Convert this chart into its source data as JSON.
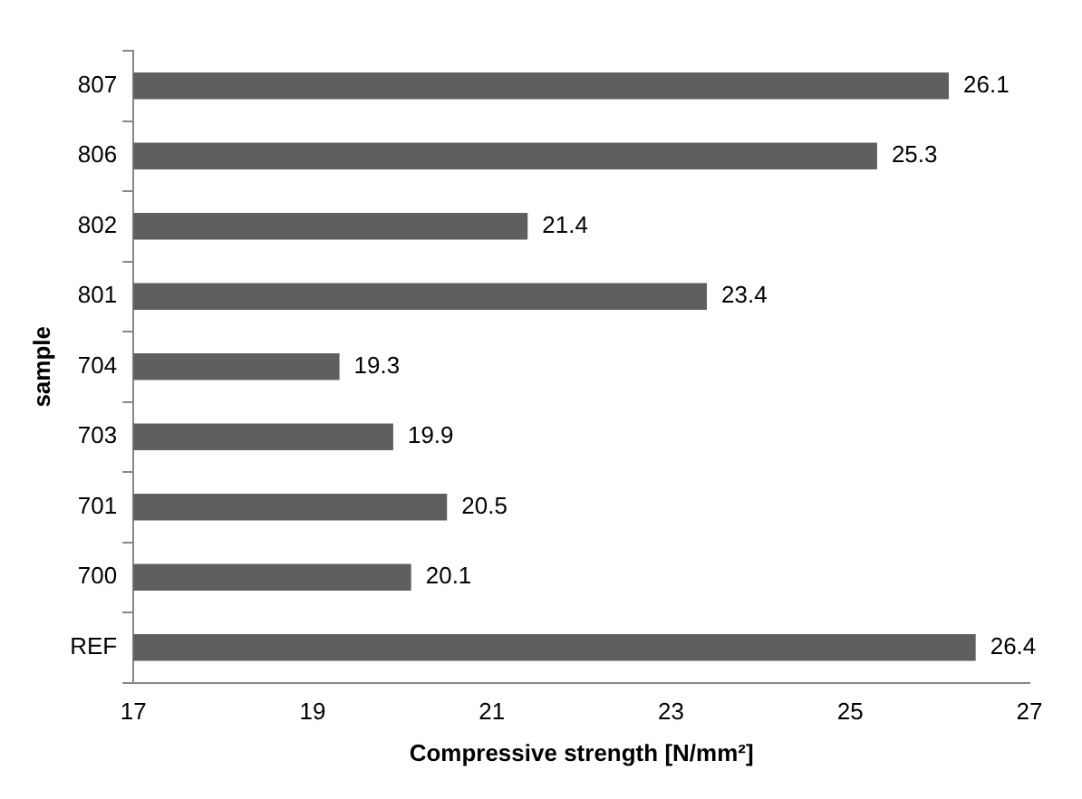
{
  "chart_data": {
    "type": "bar",
    "orientation": "horizontal",
    "xlabel": "Compressive strength [N/mm²]",
    "ylabel": "sample",
    "categories": [
      "807",
      "806",
      "802",
      "801",
      "704",
      "703",
      "701",
      "700",
      "REF"
    ],
    "values": [
      26.1,
      25.3,
      21.4,
      23.4,
      19.3,
      19.9,
      20.5,
      20.1,
      26.4
    ],
    "color": "#5f5f5f",
    "xlim": [
      17,
      27
    ],
    "xticks": [
      17,
      19,
      21,
      23,
      25,
      27
    ],
    "grid": false,
    "data_labels": true
  }
}
